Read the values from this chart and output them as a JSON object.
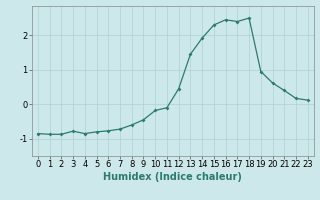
{
  "x": [
    0,
    1,
    2,
    3,
    4,
    5,
    6,
    7,
    8,
    9,
    10,
    11,
    12,
    13,
    14,
    15,
    16,
    17,
    18,
    19,
    20,
    21,
    22,
    23
  ],
  "y": [
    -0.85,
    -0.87,
    -0.87,
    -0.78,
    -0.85,
    -0.8,
    -0.77,
    -0.72,
    -0.6,
    -0.45,
    -0.18,
    -0.1,
    0.45,
    1.45,
    1.92,
    2.3,
    2.45,
    2.4,
    2.5,
    0.95,
    0.62,
    0.4,
    0.17,
    0.12
  ],
  "line_color": "#2d7a6e",
  "marker": "D",
  "marker_size": 2.0,
  "bg_color": "#cde8ea",
  "grid_color": "#b0d0d2",
  "xlabel": "Humidex (Indice chaleur)",
  "xlim": [
    -0.5,
    23.5
  ],
  "ylim": [
    -1.5,
    2.85
  ],
  "yticks": [
    -1,
    0,
    1,
    2
  ],
  "xticks": [
    0,
    1,
    2,
    3,
    4,
    5,
    6,
    7,
    8,
    9,
    10,
    11,
    12,
    13,
    14,
    15,
    16,
    17,
    18,
    19,
    20,
    21,
    22,
    23
  ],
  "xlabel_fontsize": 7.0,
  "tick_fontsize": 6.0
}
